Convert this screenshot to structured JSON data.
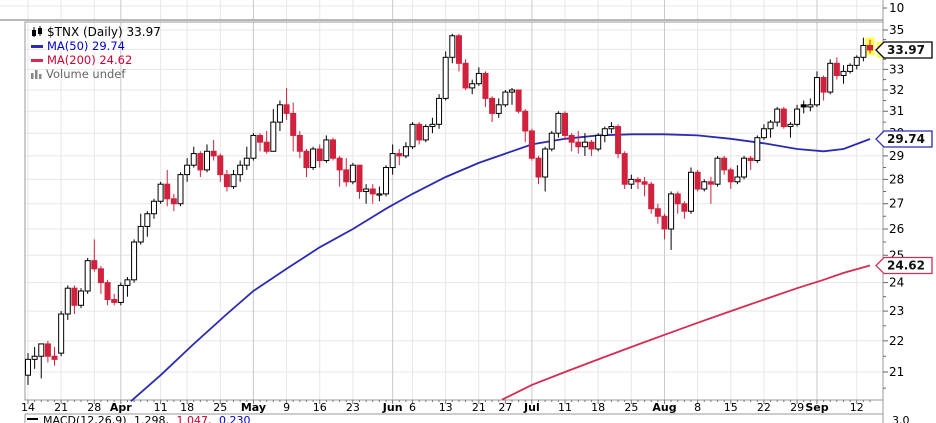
{
  "legend": {
    "title": "$TNX (Daily) 33.97",
    "ma50": "MA(50) 29.74",
    "ma200": "MA(200) 24.62",
    "volume": "Volume undef"
  },
  "badges": {
    "last_price": "33.97",
    "ma50": "29.74",
    "ma200": "24.62"
  },
  "upper_pane": {
    "axis_label": "10"
  },
  "lower_pane": {
    "legend_name": "MACD(12,26,9)",
    "legend_values": [
      "1.298,",
      "1.047,",
      "0.230"
    ],
    "axis_label": "3.0"
  },
  "y_axis": {
    "labels": [
      35,
      34,
      33,
      32,
      31,
      30,
      29,
      28,
      27,
      26,
      25,
      24,
      23,
      22,
      21
    ]
  },
  "x_axis": {
    "labels": [
      {
        "t": "14",
        "i": 0,
        "bold": false
      },
      {
        "t": "21",
        "i": 5,
        "bold": false
      },
      {
        "t": "28",
        "i": 10,
        "bold": false
      },
      {
        "t": "Apr",
        "i": 14,
        "bold": true
      },
      {
        "t": "11",
        "i": 20,
        "bold": false
      },
      {
        "t": "18",
        "i": 24,
        "bold": false
      },
      {
        "t": "25",
        "i": 29,
        "bold": false
      },
      {
        "t": "May",
        "i": 34,
        "bold": true
      },
      {
        "t": "9",
        "i": 39,
        "bold": false
      },
      {
        "t": "16",
        "i": 44,
        "bold": false
      },
      {
        "t": "23",
        "i": 49,
        "bold": false
      },
      {
        "t": "Jun",
        "i": 55,
        "bold": true
      },
      {
        "t": "6",
        "i": 58,
        "bold": false
      },
      {
        "t": "13",
        "i": 63,
        "bold": false
      },
      {
        "t": "21",
        "i": 68,
        "bold": false
      },
      {
        "t": "27",
        "i": 72,
        "bold": false
      },
      {
        "t": "Jul",
        "i": 76,
        "bold": true
      },
      {
        "t": "11",
        "i": 81,
        "bold": false
      },
      {
        "t": "18",
        "i": 86,
        "bold": false
      },
      {
        "t": "25",
        "i": 91,
        "bold": false
      },
      {
        "t": "Aug",
        "i": 96,
        "bold": true
      },
      {
        "t": "8",
        "i": 101,
        "bold": false
      },
      {
        "t": "15",
        "i": 106,
        "bold": false
      },
      {
        "t": "22",
        "i": 111,
        "bold": false
      },
      {
        "t": "29",
        "i": 116,
        "bold": false
      },
      {
        "t": "Sep",
        "i": 119,
        "bold": true
      },
      {
        "t": "12",
        "i": 125,
        "bold": false
      }
    ]
  },
  "chart_data": {
    "type": "candlestick",
    "symbol": "$TNX",
    "period": "Daily",
    "last_close": 33.97,
    "scale": "log",
    "y_range": [
      20.14,
      35.42
    ],
    "legend_position": "top-left",
    "grid": true,
    "candle_format": [
      "date",
      "open",
      "high",
      "low",
      "close"
    ],
    "candles": [
      [
        "3/14",
        20.9,
        21.6,
        20.6,
        21.4
      ],
      [
        "3/15",
        21.4,
        21.8,
        21.1,
        21.5
      ],
      [
        "3/16",
        21.5,
        21.9,
        20.8,
        21.9
      ],
      [
        "3/17",
        21.9,
        22.0,
        21.3,
        21.5
      ],
      [
        "3/18",
        21.5,
        21.8,
        21.2,
        21.4
      ],
      [
        "3/21",
        21.6,
        23.0,
        21.5,
        22.9
      ],
      [
        "3/22",
        22.9,
        23.9,
        22.7,
        23.8
      ],
      [
        "3/23",
        23.8,
        23.9,
        22.9,
        23.2
      ],
      [
        "3/24",
        23.2,
        23.8,
        23.1,
        23.7
      ],
      [
        "3/25",
        23.7,
        24.9,
        23.6,
        24.8
      ],
      [
        "3/28",
        24.8,
        25.6,
        24.4,
        24.5
      ],
      [
        "3/29",
        24.5,
        24.6,
        23.6,
        24.0
      ],
      [
        "3/30",
        24.0,
        24.1,
        23.2,
        23.4
      ],
      [
        "3/31",
        23.4,
        23.6,
        23.2,
        23.3
      ],
      [
        "4/1",
        23.3,
        24.0,
        23.2,
        23.9
      ],
      [
        "4/4",
        23.9,
        24.2,
        23.5,
        24.1
      ],
      [
        "4/5",
        24.1,
        25.6,
        24.0,
        25.5
      ],
      [
        "4/6",
        25.5,
        26.6,
        25.4,
        26.1
      ],
      [
        "4/7",
        26.1,
        26.7,
        25.7,
        26.6
      ],
      [
        "4/8",
        26.6,
        27.2,
        26.4,
        27.1
      ],
      [
        "4/11",
        27.1,
        27.9,
        27.0,
        27.8
      ],
      [
        "4/12",
        27.8,
        28.4,
        26.9,
        27.2
      ],
      [
        "4/13",
        27.2,
        27.4,
        26.7,
        27.0
      ],
      [
        "4/14",
        27.0,
        28.3,
        26.9,
        28.2
      ],
      [
        "4/18",
        28.2,
        28.9,
        27.9,
        28.6
      ],
      [
        "4/19",
        28.6,
        29.4,
        28.5,
        29.1
      ],
      [
        "4/20",
        29.1,
        29.2,
        28.1,
        28.4
      ],
      [
        "4/21",
        28.4,
        29.5,
        28.3,
        29.2
      ],
      [
        "4/22",
        29.2,
        29.7,
        28.8,
        29.0
      ],
      [
        "4/25",
        29.0,
        29.1,
        27.9,
        28.2
      ],
      [
        "4/26",
        28.2,
        28.4,
        27.5,
        27.7
      ],
      [
        "4/27",
        27.7,
        28.4,
        27.6,
        28.2
      ],
      [
        "4/28",
        28.2,
        28.8,
        27.9,
        28.6
      ],
      [
        "4/29",
        28.6,
        29.4,
        28.4,
        28.9
      ],
      [
        "5/2",
        28.9,
        30.0,
        28.8,
        29.9
      ],
      [
        "5/3",
        29.9,
        30.0,
        29.2,
        29.6
      ],
      [
        "5/4",
        29.6,
        30.1,
        29.1,
        29.2
      ],
      [
        "5/5",
        29.2,
        31.1,
        29.2,
        30.5
      ],
      [
        "5/6",
        30.5,
        31.5,
        30.1,
        31.3
      ],
      [
        "5/9",
        31.3,
        32.1,
        30.6,
        30.9
      ],
      [
        "5/10",
        30.9,
        31.4,
        29.2,
        29.9
      ],
      [
        "5/11",
        29.9,
        30.1,
        28.9,
        29.2
      ],
      [
        "5/12",
        29.2,
        29.3,
        28.1,
        28.5
      ],
      [
        "5/13",
        28.5,
        29.4,
        28.4,
        29.3
      ],
      [
        "5/16",
        29.3,
        29.5,
        28.5,
        28.8
      ],
      [
        "5/17",
        28.8,
        29.9,
        28.7,
        29.7
      ],
      [
        "5/18",
        29.7,
        29.8,
        28.8,
        28.9
      ],
      [
        "5/19",
        28.9,
        29.0,
        27.7,
        28.4
      ],
      [
        "5/20",
        28.4,
        28.9,
        27.7,
        27.9
      ],
      [
        "5/23",
        27.9,
        28.7,
        27.8,
        28.6
      ],
      [
        "5/24",
        28.6,
        28.6,
        27.2,
        27.5
      ],
      [
        "5/25",
        27.5,
        27.8,
        27.0,
        27.6
      ],
      [
        "5/26",
        27.6,
        27.8,
        27.0,
        27.4
      ],
      [
        "5/27",
        27.4,
        27.7,
        27.1,
        27.4
      ],
      [
        "5/31",
        27.4,
        28.6,
        27.3,
        28.5
      ],
      [
        "6/1",
        28.5,
        29.5,
        28.2,
        29.1
      ],
      [
        "6/2",
        29.1,
        29.3,
        28.6,
        29.0
      ],
      [
        "6/3",
        29.0,
        29.6,
        28.9,
        29.4
      ],
      [
        "6/6",
        29.4,
        30.5,
        29.3,
        30.4
      ],
      [
        "6/7",
        30.4,
        30.5,
        29.5,
        29.7
      ],
      [
        "6/8",
        29.7,
        30.4,
        29.6,
        30.3
      ],
      [
        "6/9",
        30.3,
        30.7,
        30.0,
        30.4
      ],
      [
        "6/10",
        30.4,
        31.8,
        30.2,
        31.6
      ],
      [
        "6/13",
        31.6,
        33.9,
        31.5,
        33.6
      ],
      [
        "6/14",
        33.6,
        34.8,
        33.3,
        34.7
      ],
      [
        "6/15",
        34.7,
        34.8,
        32.9,
        33.3
      ],
      [
        "6/16",
        33.3,
        33.5,
        32.0,
        32.1
      ],
      [
        "6/17",
        32.1,
        32.5,
        31.8,
        32.3
      ],
      [
        "6/21",
        32.3,
        33.1,
        32.2,
        32.8
      ],
      [
        "6/22",
        32.8,
        32.9,
        31.2,
        31.6
      ],
      [
        "6/23",
        31.6,
        31.7,
        30.5,
        30.9
      ],
      [
        "6/24",
        30.9,
        31.6,
        30.7,
        31.3
      ],
      [
        "6/27",
        31.3,
        32.0,
        31.2,
        31.9
      ],
      [
        "6/28",
        31.9,
        32.1,
        31.3,
        32.0
      ],
      [
        "6/29",
        32.0,
        32.0,
        30.9,
        31.0
      ],
      [
        "6/30",
        31.0,
        31.1,
        29.6,
        30.1
      ],
      [
        "7/1",
        30.1,
        30.2,
        28.8,
        28.9
      ],
      [
        "7/5",
        28.9,
        29.0,
        27.8,
        28.1
      ],
      [
        "7/6",
        28.1,
        29.4,
        27.5,
        29.3
      ],
      [
        "7/7",
        29.3,
        30.1,
        29.2,
        30.0
      ],
      [
        "7/8",
        30.0,
        31.0,
        29.8,
        30.9
      ],
      [
        "7/11",
        30.9,
        31.0,
        29.7,
        29.9
      ],
      [
        "7/12",
        29.9,
        30.0,
        29.2,
        29.6
      ],
      [
        "7/13",
        29.6,
        30.1,
        29.1,
        29.4
      ],
      [
        "7/14",
        29.4,
        30.0,
        29.0,
        29.6
      ],
      [
        "7/15",
        29.6,
        29.7,
        29.0,
        29.3
      ],
      [
        "7/18",
        29.3,
        30.0,
        29.2,
        29.9
      ],
      [
        "7/19",
        29.9,
        30.3,
        29.6,
        30.2
      ],
      [
        "7/20",
        30.2,
        30.5,
        30.0,
        30.3
      ],
      [
        "7/21",
        30.3,
        30.4,
        28.9,
        29.1
      ],
      [
        "7/22",
        29.1,
        29.2,
        27.6,
        27.8
      ],
      [
        "7/25",
        27.8,
        28.2,
        27.6,
        28.0
      ],
      [
        "7/26",
        28.0,
        28.1,
        27.6,
        27.9
      ],
      [
        "7/27",
        27.9,
        28.1,
        27.3,
        27.8
      ],
      [
        "7/28",
        27.8,
        27.9,
        26.6,
        26.8
      ],
      [
        "7/29",
        26.8,
        27.0,
        26.2,
        26.5
      ],
      [
        "8/1",
        26.5,
        26.6,
        25.6,
        26.0
      ],
      [
        "8/2",
        26.0,
        27.5,
        25.2,
        27.4
      ],
      [
        "8/3",
        27.4,
        27.5,
        26.6,
        27.0
      ],
      [
        "8/4",
        27.0,
        27.1,
        26.4,
        26.7
      ],
      [
        "8/5",
        26.7,
        28.5,
        26.6,
        28.3
      ],
      [
        "8/8",
        28.3,
        28.4,
        27.5,
        27.6
      ],
      [
        "8/9",
        27.6,
        28.0,
        27.5,
        27.9
      ],
      [
        "8/10",
        27.9,
        28.1,
        27.0,
        27.8
      ],
      [
        "8/11",
        27.8,
        29.0,
        27.7,
        28.9
      ],
      [
        "8/12",
        28.9,
        29.0,
        28.2,
        28.4
      ],
      [
        "8/15",
        28.4,
        28.5,
        27.6,
        27.9
      ],
      [
        "8/16",
        27.9,
        28.6,
        27.8,
        28.1
      ],
      [
        "8/17",
        28.1,
        29.0,
        28.0,
        28.9
      ],
      [
        "8/18",
        28.9,
        29.0,
        28.4,
        28.8
      ],
      [
        "8/19",
        28.8,
        29.9,
        28.7,
        29.8
      ],
      [
        "8/22",
        29.8,
        30.4,
        29.7,
        30.2
      ],
      [
        "8/23",
        30.2,
        30.6,
        29.8,
        30.5
      ],
      [
        "8/24",
        30.5,
        31.2,
        30.3,
        31.1
      ],
      [
        "8/25",
        31.1,
        31.2,
        30.2,
        30.3
      ],
      [
        "8/26",
        30.3,
        30.5,
        29.8,
        30.4
      ],
      [
        "8/29",
        30.4,
        31.3,
        30.3,
        31.1
      ],
      [
        "8/30",
        31.3,
        31.5,
        30.9,
        31.2
      ],
      [
        "8/31",
        31.2,
        31.6,
        31.0,
        31.3
      ],
      [
        "9/1",
        31.3,
        32.9,
        31.2,
        32.6
      ],
      [
        "9/2",
        32.6,
        32.7,
        31.5,
        31.9
      ],
      [
        "9/6",
        31.9,
        33.5,
        31.8,
        33.3
      ],
      [
        "9/7",
        33.3,
        33.6,
        32.5,
        32.7
      ],
      [
        "9/8",
        32.7,
        33.2,
        32.3,
        32.9
      ],
      [
        "9/9",
        32.9,
        33.3,
        32.8,
        33.2
      ],
      [
        "9/12",
        33.2,
        33.7,
        33.0,
        33.6
      ],
      [
        "9/13",
        33.6,
        34.6,
        33.4,
        34.2
      ],
      [
        "9/14",
        34.2,
        34.5,
        33.8,
        33.97
      ]
    ],
    "ma50": {
      "name": "MA(50)",
      "last": 29.74,
      "points": [
        [
          15.5,
          20.1
        ],
        [
          20,
          20.9
        ],
        [
          25,
          21.9
        ],
        [
          30,
          22.9
        ],
        [
          34,
          23.7
        ],
        [
          39,
          24.5
        ],
        [
          44,
          25.3
        ],
        [
          49,
          26.0
        ],
        [
          54,
          26.8
        ],
        [
          58,
          27.4
        ],
        [
          63,
          28.1
        ],
        [
          68,
          28.7
        ],
        [
          72,
          29.1
        ],
        [
          76,
          29.5
        ],
        [
          81,
          29.75
        ],
        [
          86,
          29.9
        ],
        [
          91,
          29.95
        ],
        [
          96,
          29.95
        ],
        [
          101,
          29.9
        ],
        [
          106,
          29.75
        ],
        [
          111,
          29.55
        ],
        [
          116,
          29.3
        ],
        [
          120,
          29.2
        ],
        [
          123,
          29.3
        ],
        [
          127,
          29.74
        ]
      ]
    },
    "ma200": {
      "name": "MA(200)",
      "last": 24.62,
      "points": [
        [
          71.5,
          20.15
        ],
        [
          76,
          20.6
        ],
        [
          81,
          21.0
        ],
        [
          86,
          21.4
        ],
        [
          91,
          21.8
        ],
        [
          96,
          22.2
        ],
        [
          101,
          22.6
        ],
        [
          106,
          23.0
        ],
        [
          111,
          23.4
        ],
        [
          116,
          23.8
        ],
        [
          120,
          24.1
        ],
        [
          123,
          24.35
        ],
        [
          127,
          24.62
        ]
      ]
    },
    "colors": {
      "up": "#000000",
      "down": "#d0213d",
      "ma50": "#2a2ab5",
      "ma200": "#d62b52",
      "grid": "#e7e7e7",
      "month_grid": "#c9c9c9",
      "frame": "#999999",
      "highlight": "#ffff4d",
      "axis_text": "#000000"
    }
  }
}
